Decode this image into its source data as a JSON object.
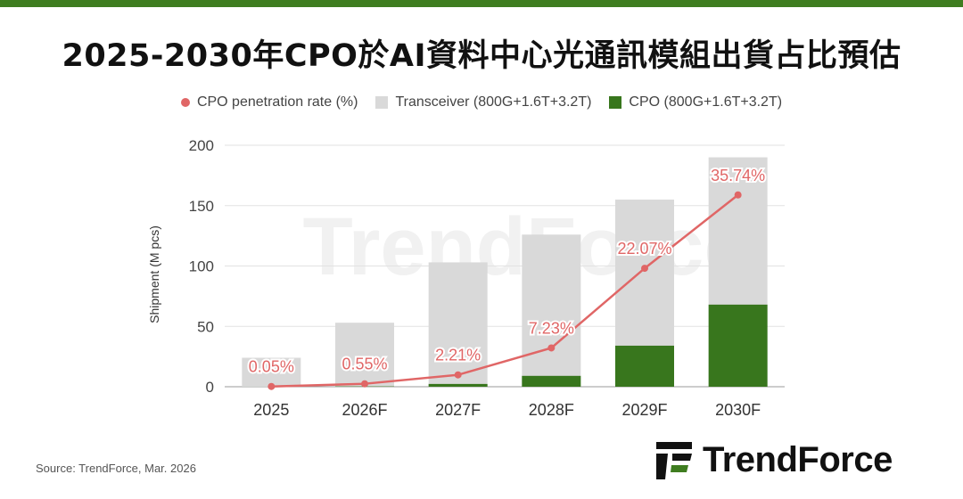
{
  "page": {
    "title": "2025-2030年CPO於AI資料中心光通訊模組出貨占比預估",
    "source": "Source: TrendForce, Mar. 2026",
    "brand": "TrendForce",
    "watermark": "TrendForce",
    "accent_color": "#3f7d20"
  },
  "legend": [
    {
      "label": "CPO penetration rate (%)",
      "marker": "dot",
      "color": "#e06666"
    },
    {
      "label": "Transceiver (800G+1.6T+3.2T)",
      "marker": "square",
      "color": "#d9d9d9"
    },
    {
      "label": "CPO (800G+1.6T+3.2T)",
      "marker": "square",
      "color": "#38761d"
    }
  ],
  "chart_data": {
    "type": "bar",
    "categories": [
      "2025",
      "2026F",
      "2027F",
      "2028F",
      "2029F",
      "2030F"
    ],
    "ylabel": "Shipment (M pcs)",
    "ylim": [
      0,
      200
    ],
    "yticks": [
      0,
      50,
      100,
      150,
      200
    ],
    "series": [
      {
        "name": "Transceiver (800G+1.6T+3.2T)",
        "type": "bar",
        "color": "#d9d9d9",
        "values": [
          24,
          53,
          103,
          126,
          155,
          190
        ]
      },
      {
        "name": "CPO (800G+1.6T+3.2T)",
        "type": "bar",
        "color": "#38761d",
        "values": [
          0.01,
          0.3,
          2.3,
          9,
          34,
          68
        ]
      },
      {
        "name": "CPO penetration rate (%)",
        "type": "line",
        "color": "#e06666",
        "values": [
          0.05,
          0.55,
          2.21,
          7.23,
          22.07,
          35.74
        ],
        "labels": [
          "0.05%",
          "0.55%",
          "2.21%",
          "7.23%",
          "22.07%",
          "35.74%"
        ]
      }
    ],
    "grid": true,
    "legend_position": "top"
  }
}
